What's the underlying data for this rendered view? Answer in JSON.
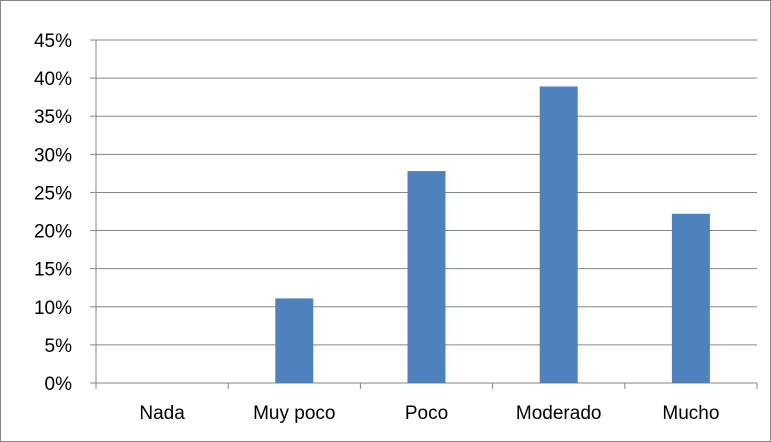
{
  "chart_data": {
    "type": "bar",
    "categories": [
      "Nada",
      "Muy poco",
      "Poco",
      "Moderado",
      "Mucho"
    ],
    "values": [
      0,
      11.1,
      27.8,
      38.9,
      22.2
    ],
    "y_ticks": [
      "0%",
      "5%",
      "10%",
      "15%",
      "20%",
      "25%",
      "30%",
      "35%",
      "40%",
      "45%"
    ],
    "ylim": [
      0,
      45
    ],
    "y_unit": "%",
    "grid": true,
    "legend": "none",
    "colors": {
      "bar": "#4F81BD",
      "grid": "#868686",
      "axis": "#868686"
    }
  }
}
